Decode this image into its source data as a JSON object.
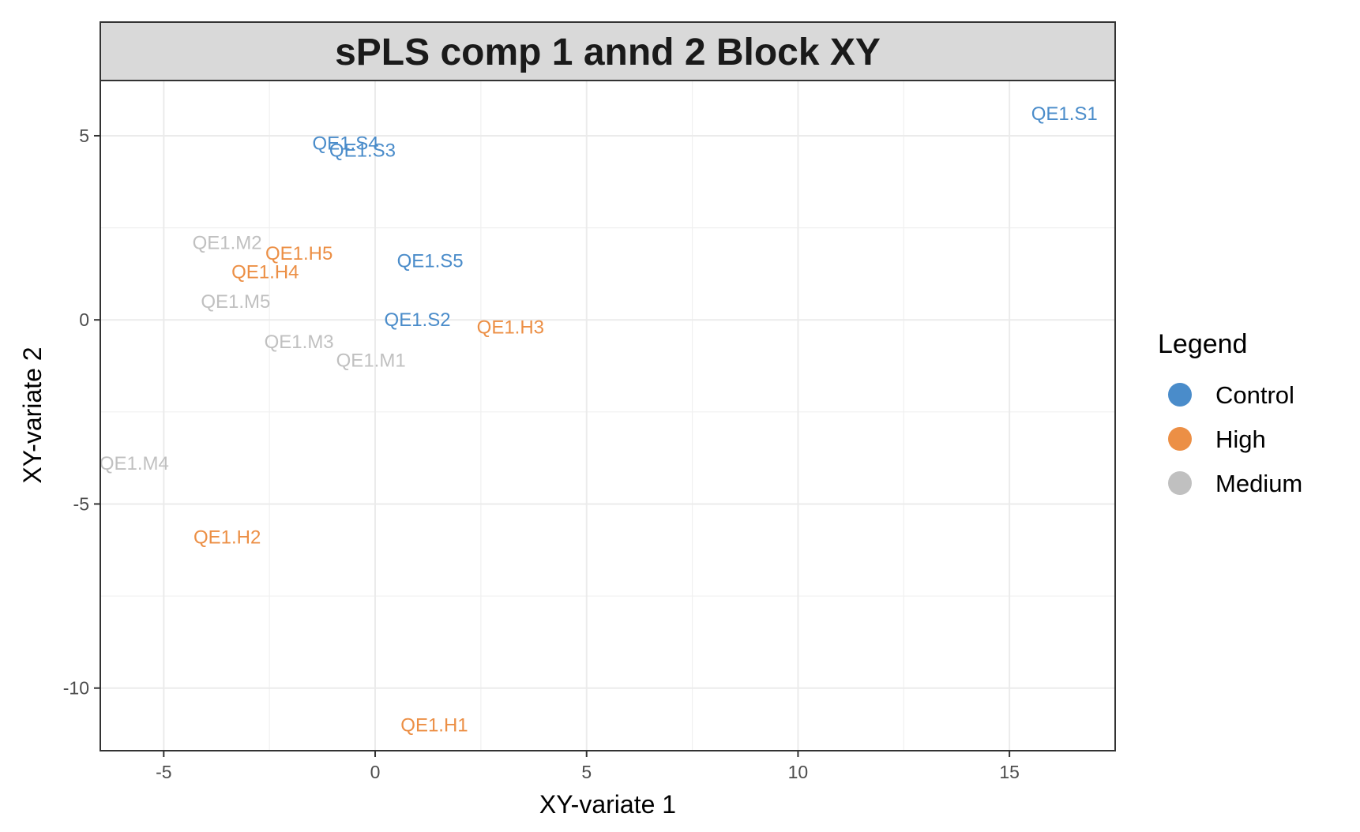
{
  "chart_data": {
    "type": "scatter",
    "title": "sPLS comp 1 annd 2 Block XY",
    "xlabel": "XY-variate 1",
    "ylabel": "XY-variate 2",
    "xlim": [
      -6.5,
      17.5
    ],
    "ylim": [
      -11.7,
      6.5
    ],
    "x_ticks": [
      -5,
      0,
      5,
      10,
      15
    ],
    "y_ticks": [
      5,
      0,
      -5,
      -10
    ],
    "x_tick_labels": [
      "-5",
      "0",
      "5",
      "10",
      "15"
    ],
    "y_tick_labels": [
      "5",
      "0",
      "-5",
      "-10"
    ],
    "grid": true,
    "legend": {
      "title": "Legend",
      "placement": "right",
      "entries": [
        {
          "label": "Control",
          "color": "#4a8cca"
        },
        {
          "label": "High",
          "color": "#ec8f45"
        },
        {
          "label": "Medium",
          "color": "#c0c0c0"
        }
      ]
    },
    "points": [
      {
        "label": "QE1.S1",
        "group": "Control",
        "x": 16.3,
        "y": 5.6
      },
      {
        "label": "QE1.S4",
        "group": "Control",
        "x": -0.7,
        "y": 4.8
      },
      {
        "label": "QE1.S3",
        "group": "Control",
        "x": -0.3,
        "y": 4.6
      },
      {
        "label": "QE1.S5",
        "group": "Control",
        "x": 1.3,
        "y": 1.6
      },
      {
        "label": "QE1.S2",
        "group": "Control",
        "x": 1.0,
        "y": 0.0
      },
      {
        "label": "QE1.H5",
        "group": "High",
        "x": -1.8,
        "y": 1.8
      },
      {
        "label": "QE1.H4",
        "group": "High",
        "x": -2.6,
        "y": 1.3
      },
      {
        "label": "QE1.H3",
        "group": "High",
        "x": 3.2,
        "y": -0.2
      },
      {
        "label": "QE1.H2",
        "group": "High",
        "x": -3.5,
        "y": -5.9
      },
      {
        "label": "QE1.H1",
        "group": "High",
        "x": 1.4,
        "y": -11.0
      },
      {
        "label": "QE1.M2",
        "group": "Medium",
        "x": -3.5,
        "y": 2.1
      },
      {
        "label": "QE1.M5",
        "group": "Medium",
        "x": -3.3,
        "y": 0.5
      },
      {
        "label": "QE1.M3",
        "group": "Medium",
        "x": -1.8,
        "y": -0.6
      },
      {
        "label": "QE1.M1",
        "group": "Medium",
        "x": -0.1,
        "y": -1.1
      },
      {
        "label": "QE1.M4",
        "group": "Medium",
        "x": -5.7,
        "y": -3.9
      }
    ]
  }
}
